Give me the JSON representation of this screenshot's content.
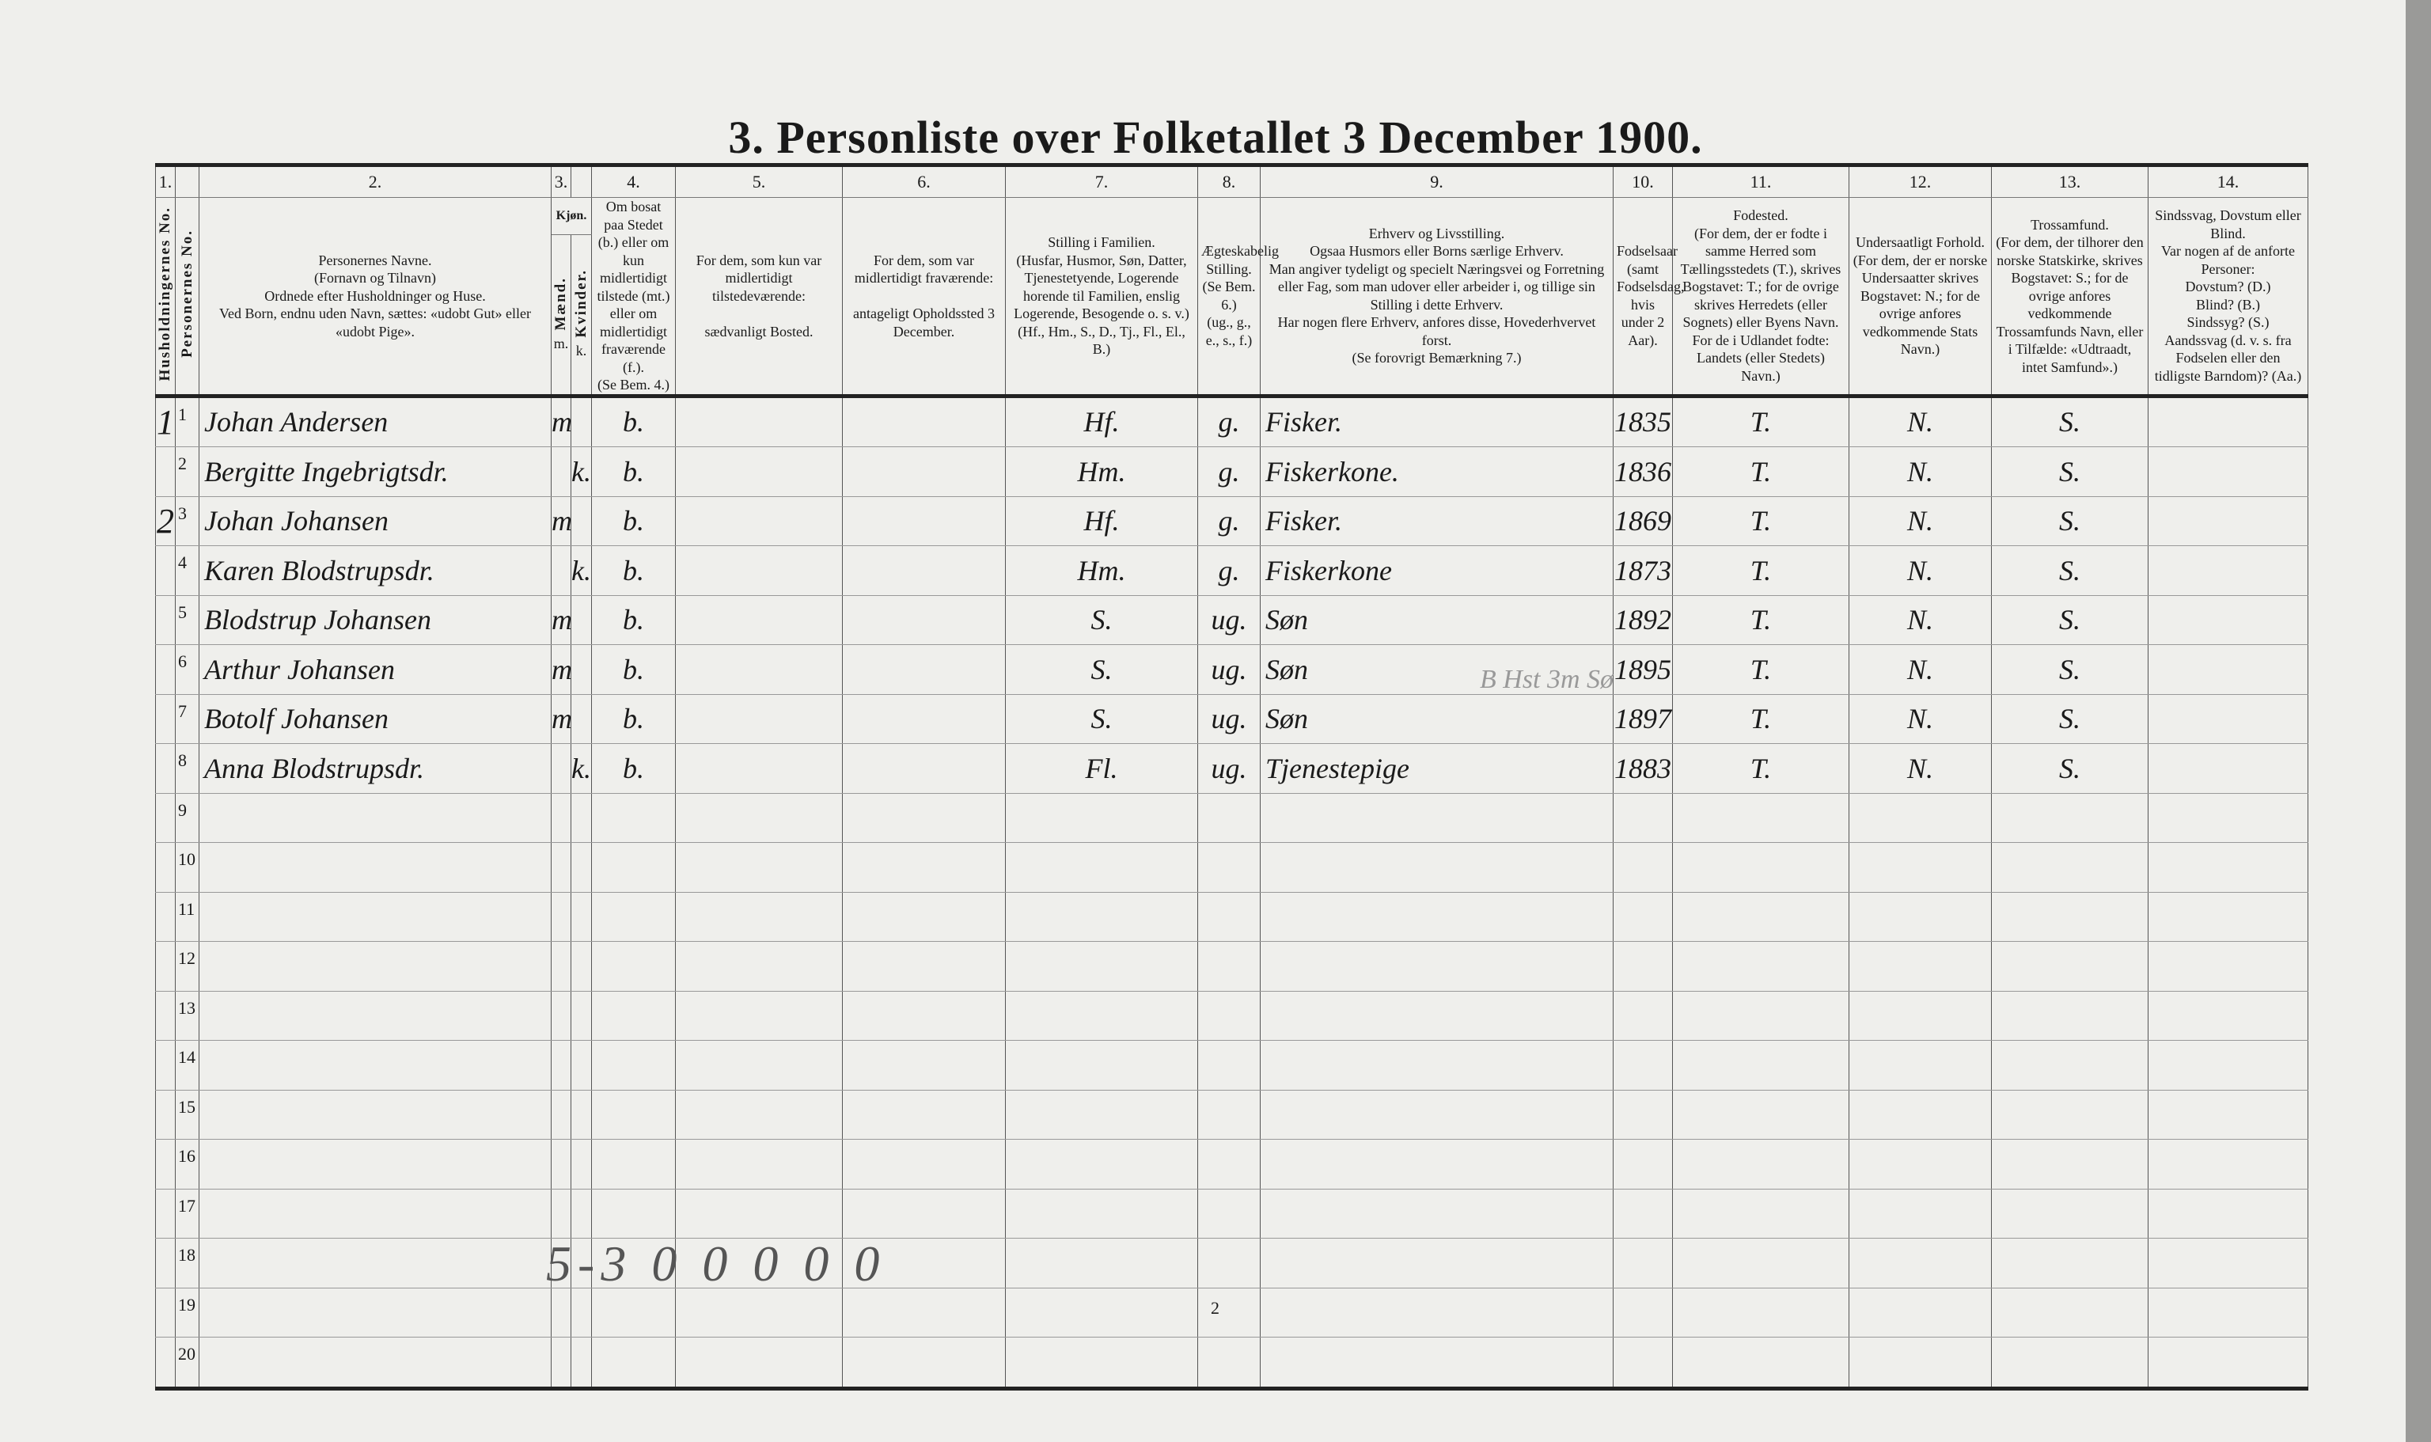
{
  "title": "3.  Personliste over Folketallet 3 December 1900.",
  "column_numbers": [
    "1.",
    "",
    "2.",
    "3.",
    "",
    "4.",
    "5.",
    "6.",
    "7.",
    "8.",
    "9.",
    "10.",
    "11.",
    "12.",
    "13.",
    "14."
  ],
  "headers": {
    "c1": "Husholdningernes No.",
    "c2": "Personernes No.",
    "c_name": "Personernes Navne.\n(Fornavn og Tilnavn)\nOrdnede efter Husholdninger og Huse.\nVed Born, endnu uden Navn, sættes: «udobt Gut» eller «udobt Pige».",
    "kjon": "Kjøn.",
    "m": "Mænd.",
    "k": "Kvinder.",
    "m_sub": "m.",
    "k_sub": "k.",
    "c4": "Om bosat paa Stedet (b.) eller om kun midlertidigt tilstede (mt.) eller om midlertidigt fraværende (f.).\n(Se Bem. 4.)",
    "c5": "For dem, som kun var midlertidigt tilstedeværende:\n\nsædvanligt Bosted.",
    "c6": "For dem, som var midlertidigt fraværende:\n\nantageligt Opholdssted 3 December.",
    "c7": "Stilling i Familien.\n(Husfar, Husmor, Søn, Datter, Tjenestetyende, Logerende horende til Familien, enslig Logerende, Besogende o. s. v.)\n(Hf., Hm., S., D., Tj., Fl., El., B.)",
    "c8": "Ægteskabelig Stilling.\n(Se Bem. 6.)\n(ug., g., e., s., f.)",
    "c9": "Erhverv og Livsstilling.\nOgsaa Husmors eller Borns særlige Erhverv.\nMan angiver tydeligt og specielt Næringsvei og Forretning eller Fag, som man udover eller arbeider i, og tillige sin Stilling i dette Erhverv.\nHar nogen flere Erhverv, anfores disse, Hovederhvervet forst.\n(Se forovrigt Bemærkning 7.)",
    "c10": "Fodselsaar\n(samt Fodselsdag, hvis under 2 Aar).",
    "c11": "Fodested.\n(For dem, der er fodte i samme Herred som Tællingsstedets (T.), skrives Bogstavet: T.; for de ovrige skrives Herredets (eller Sognets) eller Byens Navn.\nFor de i Udlandet fodte: Landets (eller Stedets) Navn.)",
    "c12": "Undersaatligt Forhold.\n(For dem, der er norske Undersaatter skrives Bogstavet: N.; for de ovrige anfores vedkommende Stats Navn.)",
    "c13": "Trossamfund.\n(For dem, der tilhorer den norske Statskirke, skrives Bogstavet: S.; for de ovrige anfores vedkommende Trossamfunds Navn, eller i Tilfælde: «Udtraadt, intet Samfund».)",
    "c14": "Sindssvag, Dovstum eller Blind.\nVar nogen af de anforte Personer:\nDovstum? (D.)\nBlind? (B.)\nSindssyg? (S.)\nAandssvag (d. v. s. fra Fodselen eller den tidligste Barndom)? (Aa.)"
  },
  "rows": [
    {
      "hh": "1",
      "no": "1",
      "name": "Johan Andersen",
      "m": "m",
      "k": "",
      "c4": "b.",
      "c5": "",
      "c6": "",
      "c7": "Hf.",
      "c8": "g.",
      "c9": "Fisker.",
      "c10": "1835",
      "c11": "T.",
      "c12": "N.",
      "c13": "S.",
      "c14": ""
    },
    {
      "hh": "",
      "no": "2",
      "name": "Bergitte Ingebrigtsdr.",
      "m": "",
      "k": "k.",
      "c4": "b.",
      "c5": "",
      "c6": "",
      "c7": "Hm.",
      "c8": "g.",
      "c9": "Fiskerkone.",
      "c10": "1836",
      "c11": "T.",
      "c12": "N.",
      "c13": "S.",
      "c14": ""
    },
    {
      "hh": "2",
      "no": "3",
      "name": "Johan Johansen",
      "m": "m",
      "k": "",
      "c4": "b.",
      "c5": "",
      "c6": "",
      "c7": "Hf.",
      "c8": "g.",
      "c9": "Fisker.",
      "c10": "1869",
      "c11": "T.",
      "c12": "N.",
      "c13": "S.",
      "c14": ""
    },
    {
      "hh": "",
      "no": "4",
      "name": "Karen Blodstrupsdr.",
      "m": "",
      "k": "k.",
      "c4": "b.",
      "c5": "",
      "c6": "",
      "c7": "Hm.",
      "c8": "g.",
      "c9": "Fiskerkone",
      "c10": "1873",
      "c11": "T.",
      "c12": "N.",
      "c13": "S.",
      "c14": ""
    },
    {
      "hh": "",
      "no": "5",
      "name": "Blodstrup Johansen",
      "m": "m",
      "k": "",
      "c4": "b.",
      "c5": "",
      "c6": "",
      "c7": "S.",
      "c8": "ug.",
      "c9": "Søn",
      "c10": "1892",
      "c11": "T.",
      "c12": "N.",
      "c13": "S.",
      "c14": ""
    },
    {
      "hh": "",
      "no": "6",
      "name": "Arthur Johansen",
      "m": "m",
      "k": "",
      "c4": "b.",
      "c5": "",
      "c6": "",
      "c7": "S.",
      "c8": "ug.",
      "c9": "Søn",
      "c10": "1895",
      "c11": "T.",
      "c12": "N.",
      "c13": "S.",
      "c14": ""
    },
    {
      "hh": "",
      "no": "7",
      "name": "Botolf Johansen",
      "m": "m",
      "k": "",
      "c4": "b.",
      "c5": "",
      "c6": "",
      "c7": "S.",
      "c8": "ug.",
      "c9": "Søn",
      "c10": "1897",
      "c11": "T.",
      "c12": "N.",
      "c13": "S.",
      "c14": ""
    },
    {
      "hh": "",
      "no": "8",
      "name": "Anna Blodstrupsdr.",
      "m": "",
      "k": "k.",
      "c4": "b.",
      "c5": "",
      "c6": "",
      "c7": "Fl.",
      "c8": "ug.",
      "c9": "Tjenestepige",
      "c10": "1883",
      "c11": "T.",
      "c12": "N.",
      "c13": "S.",
      "c14": ""
    },
    {
      "hh": "",
      "no": "9"
    },
    {
      "hh": "",
      "no": "10"
    },
    {
      "hh": "",
      "no": "11"
    },
    {
      "hh": "",
      "no": "12"
    },
    {
      "hh": "",
      "no": "13"
    },
    {
      "hh": "",
      "no": "14"
    },
    {
      "hh": "",
      "no": "15"
    },
    {
      "hh": "",
      "no": "16"
    },
    {
      "hh": "",
      "no": "17"
    },
    {
      "hh": "",
      "no": "18"
    },
    {
      "hh": "",
      "no": "19"
    },
    {
      "hh": "",
      "no": "20"
    }
  ],
  "pencil_note": "B Hst 3m Sø",
  "bottom_tally": "5-3 0 0 0 0 0",
  "page_number": "2"
}
